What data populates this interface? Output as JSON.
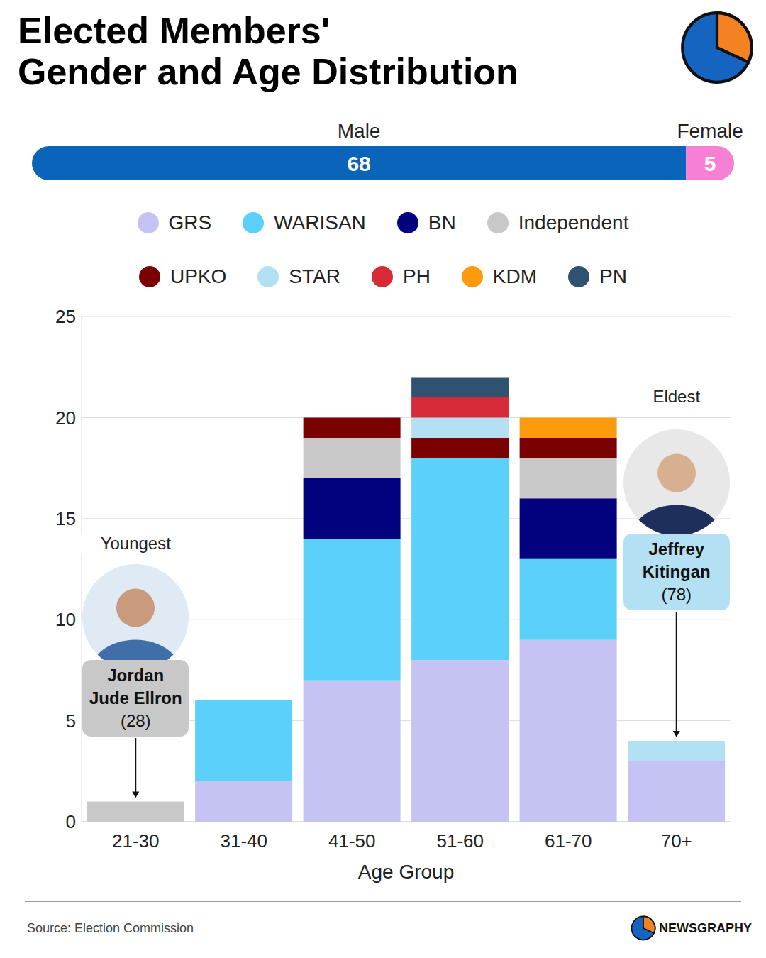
{
  "title": "Elected Members' Gender and Age Distribution",
  "source": "Source: Election Commission",
  "brand": "NEWSGRAPHY",
  "chart_data": [
    {
      "type": "bar",
      "orientation": "horizontal",
      "stacked": true,
      "data_labels": true,
      "tick_labels": false,
      "categories": [
        null
      ],
      "xlim": [
        0,
        73
      ],
      "series": [
        {
          "name": "Male",
          "color": "#0a64b9",
          "values": [
            68
          ]
        },
        {
          "name": "Female",
          "color": "#f77fd4",
          "values": [
            5
          ]
        }
      ]
    },
    {
      "type": "bar",
      "stacked": true,
      "grid": true,
      "legend": "top",
      "x_label": "Age Group",
      "categories": [
        "21-30",
        "31-40",
        "41-50",
        "51-60",
        "61-70",
        "70+"
      ],
      "ylim": [
        0,
        25
      ],
      "yticks": [
        0,
        5,
        10,
        15,
        20,
        25
      ],
      "series": [
        {
          "name": "GRS",
          "color": "#c5c3f3",
          "values": [
            0,
            2,
            7,
            8,
            9,
            3
          ]
        },
        {
          "name": "WARISAN",
          "color": "#5bd0f8",
          "values": [
            0,
            4,
            7,
            10,
            4,
            0
          ]
        },
        {
          "name": "BN",
          "color": "#02027f",
          "values": [
            0,
            0,
            3,
            0,
            3,
            0
          ]
        },
        {
          "name": "Independent",
          "color": "#c8c8c8",
          "values": [
            1,
            0,
            2,
            0,
            2,
            0
          ]
        },
        {
          "name": "UPKO",
          "color": "#7b0000",
          "values": [
            0,
            0,
            1,
            1,
            1,
            0
          ]
        },
        {
          "name": "STAR",
          "color": "#b3e0f2",
          "values": [
            0,
            0,
            0,
            1,
            0,
            1
          ]
        },
        {
          "name": "PH",
          "color": "#d62b36",
          "values": [
            0,
            0,
            0,
            1,
            0,
            0
          ]
        },
        {
          "name": "KDM",
          "color": "#fd9b0c",
          "values": [
            0,
            0,
            0,
            0,
            1,
            0
          ]
        },
        {
          "name": "PN",
          "color": "#2f5270",
          "values": [
            0,
            0,
            0,
            1,
            0,
            0
          ]
        }
      ],
      "annotations": [
        {
          "label": "Youngest",
          "name": "Jordan Jude Ellron",
          "age": "(28)",
          "category": "21-30",
          "color": "#c8c8c8"
        },
        {
          "label": "Eldest",
          "name": "Jeffrey Kitingan",
          "age": "(78)",
          "category": "70+",
          "color": "#b3e0f2"
        }
      ]
    }
  ]
}
